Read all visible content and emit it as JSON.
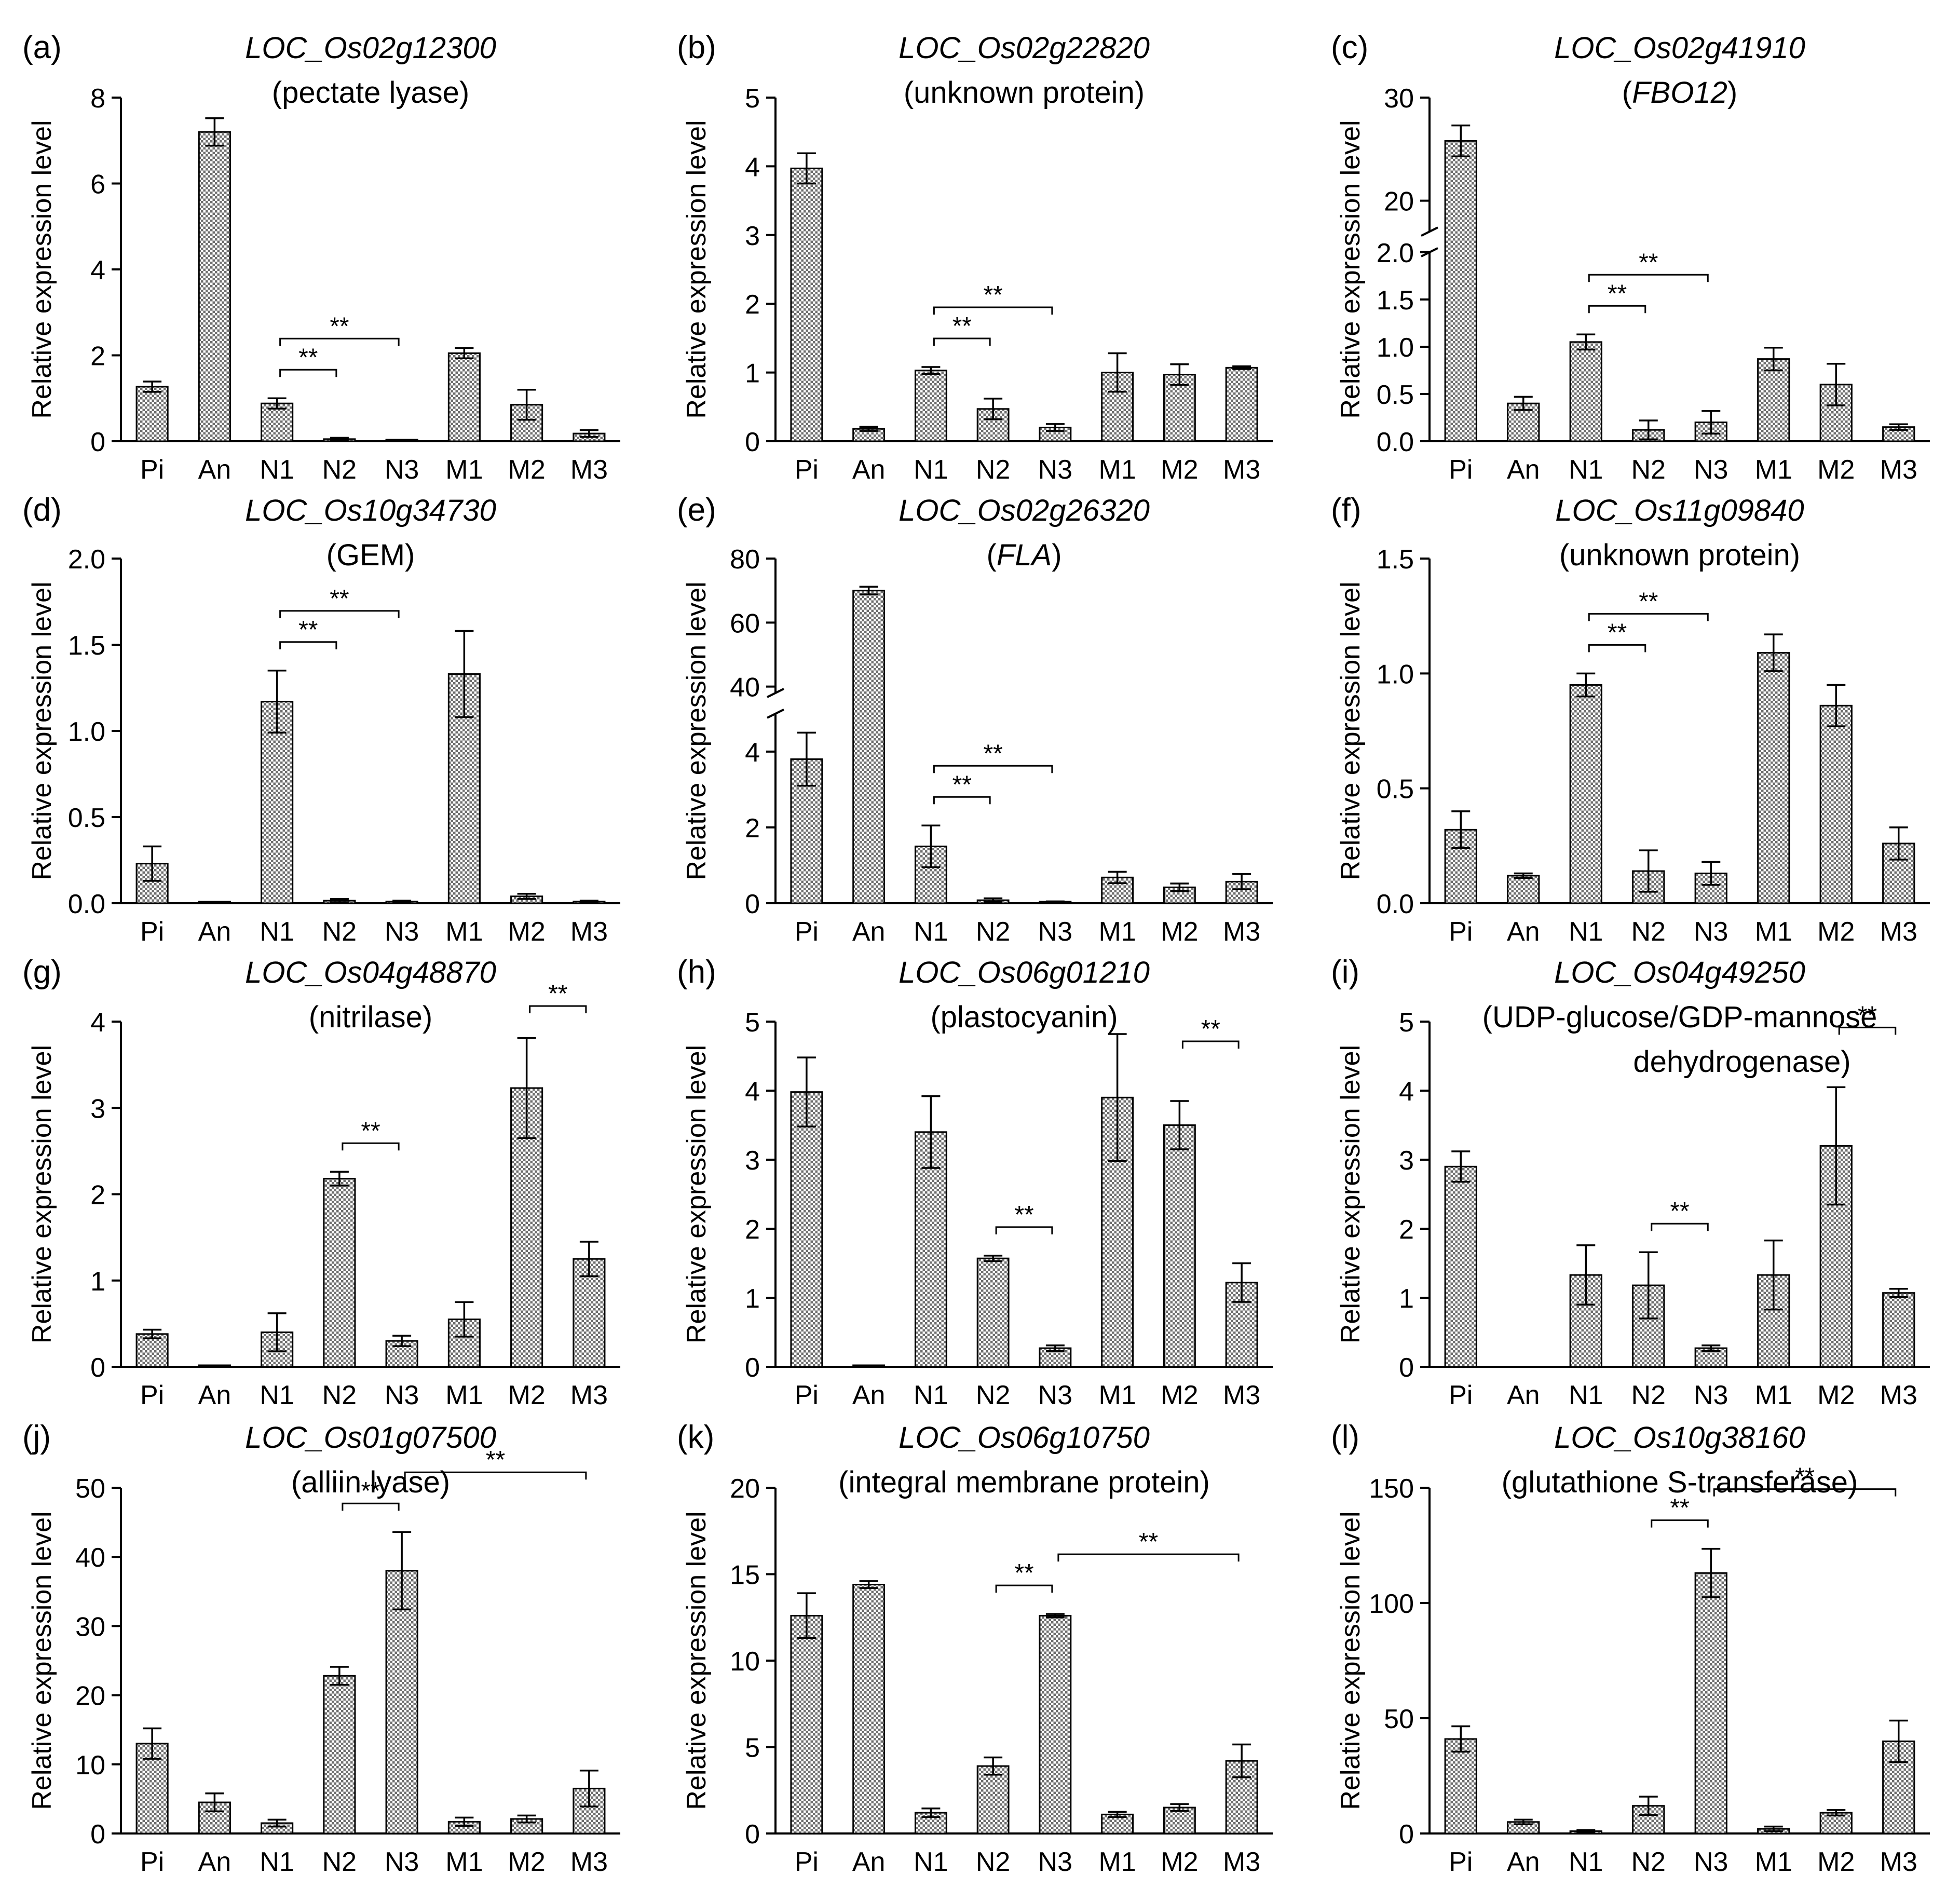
{
  "figure": {
    "shared": {
      "categories": [
        "Pi",
        "An",
        "N1",
        "N2",
        "N3",
        "M1",
        "M2",
        "M3"
      ],
      "ylabel": "Relative expression level",
      "significance_label": "**",
      "colors": {
        "bar_fill": "#8c8c8c",
        "axis": "#000000",
        "background": "#ffffff"
      }
    }
  },
  "chart_data": [
    {
      "type": "bar",
      "panel": "(a)",
      "title": "LOC_Os02g12300",
      "subtitle": "(pectate lyase)",
      "categories": [
        "Pi",
        "An",
        "N1",
        "N2",
        "N3",
        "M1",
        "M2",
        "M3"
      ],
      "values": [
        1.27,
        7.2,
        0.88,
        0.05,
        0.01,
        2.05,
        0.85,
        0.18
      ],
      "errors": [
        0.12,
        0.32,
        0.12,
        0.03,
        0.01,
        0.12,
        0.35,
        0.08
      ],
      "ylim": [
        0,
        8
      ],
      "yticks": [
        0,
        2,
        4,
        6,
        8
      ],
      "ytick_labels": [
        "0",
        "2",
        "4",
        "6",
        "8"
      ],
      "brackets": [
        {
          "from": "N1",
          "to": "N2",
          "label": "**"
        },
        {
          "from": "N1",
          "to": "N3",
          "label": "**"
        }
      ]
    },
    {
      "type": "bar",
      "panel": "(b)",
      "title": "LOC_Os02g22820",
      "subtitle": "(unknown protein)",
      "categories": [
        "Pi",
        "An",
        "N1",
        "N2",
        "N3",
        "M1",
        "M2",
        "M3"
      ],
      "values": [
        3.97,
        0.18,
        1.03,
        0.47,
        0.2,
        1.0,
        0.97,
        1.07
      ],
      "errors": [
        0.22,
        0.03,
        0.05,
        0.15,
        0.05,
        0.28,
        0.15,
        0.02
      ],
      "ylim": [
        0,
        5
      ],
      "yticks": [
        0,
        1,
        2,
        3,
        4,
        5
      ],
      "ytick_labels": [
        "0",
        "1",
        "2",
        "3",
        "4",
        "5"
      ],
      "brackets": [
        {
          "from": "N1",
          "to": "N2",
          "label": "**"
        },
        {
          "from": "N1",
          "to": "N3",
          "label": "**"
        }
      ]
    },
    {
      "type": "bar",
      "panel": "(c)",
      "title": "LOC_Os02g41910",
      "subtitle_parts": [
        "(",
        "FBO12",
        ")"
      ],
      "categories": [
        "Pi",
        "An",
        "N1",
        "N2",
        "N3",
        "M1",
        "M2",
        "M3"
      ],
      "values": [
        25.8,
        0.4,
        1.05,
        0.12,
        0.2,
        0.87,
        0.6,
        0.15
      ],
      "errors": [
        1.5,
        0.07,
        0.08,
        0.1,
        0.12,
        0.12,
        0.22,
        0.03
      ],
      "ylim": [
        0,
        30
      ],
      "y_break": [
        2.0,
        17
      ],
      "yticks": [
        0,
        0.5,
        1.0,
        1.5,
        2.0,
        20,
        30
      ],
      "ytick_labels": [
        "0.0",
        "0.5",
        "1.0",
        "1.5",
        "2.0",
        "20",
        "30"
      ],
      "brackets": [
        {
          "from": "N1",
          "to": "N2",
          "label": "**"
        },
        {
          "from": "N1",
          "to": "N3",
          "label": "**"
        }
      ]
    },
    {
      "type": "bar",
      "panel": "(d)",
      "title": "LOC_Os10g34730",
      "subtitle": "(GEM)",
      "categories": [
        "Pi",
        "An",
        "N1",
        "N2",
        "N3",
        "M1",
        "M2",
        "M3"
      ],
      "values": [
        0.23,
        0.005,
        1.17,
        0.015,
        0.01,
        1.33,
        0.04,
        0.01
      ],
      "errors": [
        0.1,
        0.003,
        0.18,
        0.01,
        0.005,
        0.25,
        0.015,
        0.005
      ],
      "ylim": [
        0,
        2.0
      ],
      "yticks": [
        0,
        0.5,
        1.0,
        1.5,
        2.0
      ],
      "ytick_labels": [
        "0.0",
        "0.5",
        "1.0",
        "1.5",
        "2.0"
      ],
      "brackets": [
        {
          "from": "N1",
          "to": "N2",
          "label": "**"
        },
        {
          "from": "N1",
          "to": "N3",
          "label": "**"
        }
      ]
    },
    {
      "type": "bar",
      "panel": "(e)",
      "title": "LOC_Os02g26320",
      "subtitle_parts": [
        "(",
        "FLA",
        ")"
      ],
      "categories": [
        "Pi",
        "An",
        "N1",
        "N2",
        "N3",
        "M1",
        "M2",
        "M3"
      ],
      "values": [
        3.8,
        70,
        1.5,
        0.08,
        0.03,
        0.68,
        0.42,
        0.57
      ],
      "errors": [
        0.7,
        1.2,
        0.55,
        0.05,
        0.02,
        0.15,
        0.1,
        0.2
      ],
      "ylim": [
        0,
        80
      ],
      "y_break": [
        5,
        38
      ],
      "yticks": [
        0,
        2,
        4,
        40,
        60,
        80
      ],
      "ytick_labels": [
        "0",
        "2",
        "4",
        "40",
        "60",
        "80"
      ],
      "brackets": [
        {
          "from": "N1",
          "to": "N2",
          "label": "**"
        },
        {
          "from": "N1",
          "to": "N3",
          "label": "**"
        }
      ]
    },
    {
      "type": "bar",
      "panel": "(f)",
      "title": "LOC_Os11g09840",
      "subtitle": "(unknown protein)",
      "categories": [
        "Pi",
        "An",
        "N1",
        "N2",
        "N3",
        "M1",
        "M2",
        "M3"
      ],
      "values": [
        0.32,
        0.12,
        0.95,
        0.14,
        0.13,
        1.09,
        0.86,
        0.26
      ],
      "errors": [
        0.08,
        0.01,
        0.05,
        0.09,
        0.05,
        0.08,
        0.09,
        0.07
      ],
      "ylim": [
        0,
        1.5
      ],
      "yticks": [
        0,
        0.5,
        1.0,
        1.5
      ],
      "ytick_labels": [
        "0.0",
        "0.5",
        "1.0",
        "1.5"
      ],
      "brackets": [
        {
          "from": "N1",
          "to": "N2",
          "label": "**"
        },
        {
          "from": "N1",
          "to": "N3",
          "label": "**"
        }
      ]
    },
    {
      "type": "bar",
      "panel": "(g)",
      "title": "LOC_Os04g48870",
      "subtitle": "(nitrilase)",
      "categories": [
        "Pi",
        "An",
        "N1",
        "N2",
        "N3",
        "M1",
        "M2",
        "M3"
      ],
      "values": [
        0.38,
        0.01,
        0.4,
        2.18,
        0.3,
        0.55,
        3.23,
        1.25
      ],
      "errors": [
        0.05,
        0.005,
        0.22,
        0.08,
        0.06,
        0.2,
        0.58,
        0.2
      ],
      "ylim": [
        0,
        4
      ],
      "yticks": [
        0,
        1,
        2,
        3,
        4
      ],
      "ytick_labels": [
        "0",
        "1",
        "2",
        "3",
        "4"
      ],
      "brackets": [
        {
          "from": "N2",
          "to": "N3",
          "label": "**"
        },
        {
          "from": "M2",
          "to": "M3",
          "label": "**"
        }
      ]
    },
    {
      "type": "bar",
      "panel": "(h)",
      "title": "LOC_Os06g01210",
      "subtitle": "(plastocyanin)",
      "categories": [
        "Pi",
        "An",
        "N1",
        "N2",
        "N3",
        "M1",
        "M2",
        "M3"
      ],
      "values": [
        3.98,
        0.01,
        3.4,
        1.57,
        0.27,
        3.9,
        3.5,
        1.22
      ],
      "errors": [
        0.5,
        0.005,
        0.52,
        0.04,
        0.04,
        0.92,
        0.35,
        0.28
      ],
      "ylim": [
        0,
        5
      ],
      "yticks": [
        0,
        1,
        2,
        3,
        4,
        5
      ],
      "ytick_labels": [
        "0",
        "1",
        "2",
        "3",
        "4",
        "5"
      ],
      "brackets": [
        {
          "from": "N2",
          "to": "N3",
          "label": "**"
        },
        {
          "from": "M2",
          "to": "M3",
          "label": "**"
        }
      ]
    },
    {
      "type": "bar",
      "panel": "(i)",
      "title": "LOC_Os04g49250",
      "subtitle": "(UDP-glucose/GDP-mannose",
      "subtitle2": "dehydrogenase)",
      "categories": [
        "Pi",
        "An",
        "N1",
        "N2",
        "N3",
        "M1",
        "M2",
        "M3"
      ],
      "values": [
        2.9,
        0,
        1.33,
        1.18,
        0.27,
        1.33,
        3.2,
        1.07
      ],
      "errors": [
        0.22,
        0,
        0.43,
        0.48,
        0.04,
        0.5,
        0.85,
        0.06
      ],
      "ylim": [
        0,
        5
      ],
      "yticks": [
        0,
        1,
        2,
        3,
        4,
        5
      ],
      "ytick_labels": [
        "0",
        "1",
        "2",
        "3",
        "4",
        "5"
      ],
      "brackets": [
        {
          "from": "N2",
          "to": "N3",
          "label": "**"
        },
        {
          "from": "M2",
          "to": "M3",
          "label": "**"
        }
      ]
    },
    {
      "type": "bar",
      "panel": "(j)",
      "title": "LOC_Os01g07500",
      "subtitle": "(alliin lyase)",
      "categories": [
        "Pi",
        "An",
        "N1",
        "N2",
        "N3",
        "M1",
        "M2",
        "M3"
      ],
      "values": [
        13,
        4.5,
        1.5,
        22.8,
        38,
        1.7,
        2.1,
        6.5
      ],
      "errors": [
        2.2,
        1.3,
        0.5,
        1.3,
        5.6,
        0.6,
        0.5,
        2.6
      ],
      "ylim": [
        0,
        50
      ],
      "yticks": [
        0,
        10,
        20,
        30,
        40,
        50
      ],
      "ytick_labels": [
        "0",
        "10",
        "20",
        "30",
        "40",
        "50"
      ],
      "brackets": [
        {
          "from": "N2",
          "to": "N3",
          "label": "**"
        },
        {
          "from": "N3",
          "to": "M3",
          "label": "**"
        }
      ]
    },
    {
      "type": "bar",
      "panel": "(k)",
      "title": "LOC_Os06g10750",
      "subtitle": "(integral membrane protein)",
      "categories": [
        "Pi",
        "An",
        "N1",
        "N2",
        "N3",
        "M1",
        "M2",
        "M3"
      ],
      "values": [
        12.6,
        14.4,
        1.2,
        3.9,
        12.6,
        1.1,
        1.5,
        4.2
      ],
      "errors": [
        1.3,
        0.2,
        0.25,
        0.5,
        0.1,
        0.15,
        0.2,
        0.95
      ],
      "ylim": [
        0,
        20
      ],
      "yticks": [
        0,
        5,
        10,
        15,
        20
      ],
      "ytick_labels": [
        "0",
        "5",
        "10",
        "15",
        "20"
      ],
      "brackets": [
        {
          "from": "N2",
          "to": "N3",
          "label": "**"
        },
        {
          "from": "N3",
          "to": "M3",
          "label": "**"
        }
      ]
    },
    {
      "type": "bar",
      "panel": "(l)",
      "title": "LOC_Os10g38160",
      "subtitle": "(glutathione S-transferase)",
      "categories": [
        "Pi",
        "An",
        "N1",
        "N2",
        "N3",
        "M1",
        "M2",
        "M3"
      ],
      "values": [
        41,
        5,
        1,
        12,
        113,
        2,
        9,
        40
      ],
      "errors": [
        5.5,
        1,
        0.5,
        4,
        10.5,
        1,
        1.2,
        9
      ],
      "ylim": [
        0,
        150
      ],
      "yticks": [
        0,
        50,
        100,
        150
      ],
      "ytick_labels": [
        "0",
        "50",
        "100",
        "150"
      ],
      "brackets": [
        {
          "from": "N2",
          "to": "N3",
          "label": "**"
        },
        {
          "from": "N3",
          "to": "M3",
          "label": "**"
        }
      ]
    }
  ]
}
